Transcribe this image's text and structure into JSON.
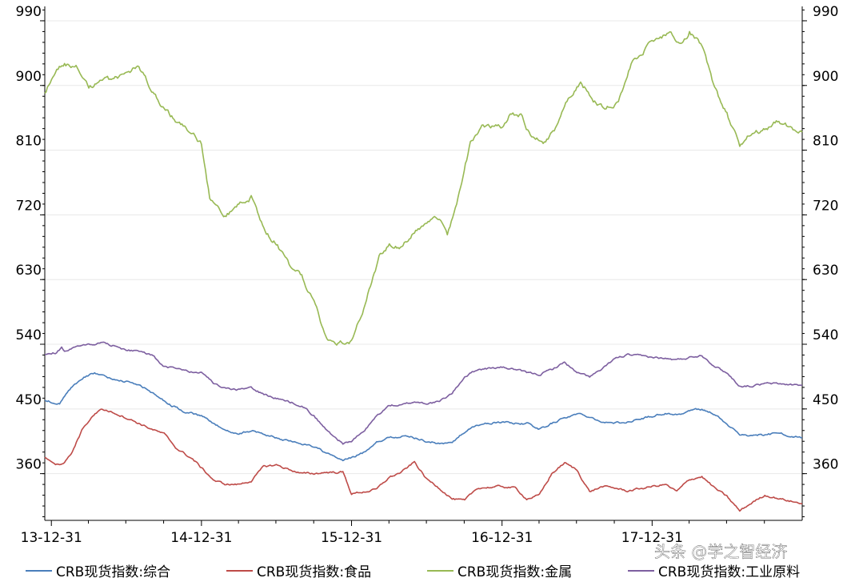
{
  "chart_data": {
    "type": "line",
    "title": "",
    "xlabel": "",
    "ylabel": "",
    "ylim": [
      295,
      1010
    ],
    "yticks": [
      360,
      450,
      540,
      630,
      720,
      810,
      900,
      990
    ],
    "yticks_right": [
      360,
      450,
      540,
      630,
      720,
      810,
      900,
      990
    ],
    "xlim": [
      "2013-12-15",
      "2018-12-31"
    ],
    "xtick_labels": [
      "13-12-31",
      "14-12-31",
      "15-12-31",
      "16-12-31",
      "17-12-31"
    ],
    "xtick_dates": [
      "2013-12-31",
      "2014-12-31",
      "2015-12-31",
      "2016-12-31",
      "2017-12-31"
    ],
    "grid": "horizontal",
    "legend_position": "bottom",
    "series": [
      {
        "name": "CRB现货指数:综合",
        "color": "#4a7ebb",
        "points": [
          [
            "2013-12-15",
            462
          ],
          [
            "2014-01-20",
            458
          ],
          [
            "2014-02-20",
            480
          ],
          [
            "2014-03-20",
            495
          ],
          [
            "2014-04-15",
            500
          ],
          [
            "2014-05-20",
            493
          ],
          [
            "2014-06-20",
            490
          ],
          [
            "2014-07-20",
            485
          ],
          [
            "2014-08-20",
            478
          ],
          [
            "2014-09-20",
            465
          ],
          [
            "2014-10-20",
            455
          ],
          [
            "2014-11-20",
            446
          ],
          [
            "2014-12-31",
            440
          ],
          [
            "2015-02-01",
            428
          ],
          [
            "2015-03-01",
            420
          ],
          [
            "2015-04-01",
            416
          ],
          [
            "2015-05-01",
            420
          ],
          [
            "2015-06-01",
            415
          ],
          [
            "2015-07-01",
            410
          ],
          [
            "2015-08-01",
            405
          ],
          [
            "2015-09-01",
            402
          ],
          [
            "2015-10-01",
            398
          ],
          [
            "2015-11-01",
            388
          ],
          [
            "2015-12-10",
            378
          ],
          [
            "2015-12-31",
            382
          ],
          [
            "2016-02-01",
            390
          ],
          [
            "2016-03-01",
            405
          ],
          [
            "2016-04-01",
            410
          ],
          [
            "2016-05-01",
            412
          ],
          [
            "2016-06-01",
            410
          ],
          [
            "2016-07-01",
            405
          ],
          [
            "2016-08-01",
            402
          ],
          [
            "2016-09-01",
            403
          ],
          [
            "2016-10-01",
            418
          ],
          [
            "2016-11-01",
            428
          ],
          [
            "2016-12-31",
            432
          ],
          [
            "2017-02-01",
            430
          ],
          [
            "2017-03-01",
            430
          ],
          [
            "2017-04-01",
            422
          ],
          [
            "2017-05-01",
            430
          ],
          [
            "2017-06-01",
            438
          ],
          [
            "2017-07-01",
            443
          ],
          [
            "2017-08-01",
            440
          ],
          [
            "2017-09-01",
            432
          ],
          [
            "2017-10-01",
            430
          ],
          [
            "2017-11-01",
            432
          ],
          [
            "2017-12-31",
            440
          ],
          [
            "2018-02-01",
            444
          ],
          [
            "2018-03-01",
            442
          ],
          [
            "2018-04-01",
            447
          ],
          [
            "2018-05-01",
            450
          ],
          [
            "2018-06-01",
            443
          ],
          [
            "2018-07-01",
            428
          ],
          [
            "2018-08-01",
            415
          ],
          [
            "2018-09-01",
            413
          ],
          [
            "2018-10-01",
            414
          ],
          [
            "2018-11-01",
            416
          ],
          [
            "2018-12-31",
            410
          ]
        ]
      },
      {
        "name": "CRB现货指数:食品",
        "color": "#be4b48",
        "points": [
          [
            "2013-12-15",
            382
          ],
          [
            "2014-01-10",
            370
          ],
          [
            "2014-02-01",
            375
          ],
          [
            "2014-02-20",
            390
          ],
          [
            "2014-03-15",
            420
          ],
          [
            "2014-04-10",
            440
          ],
          [
            "2014-05-01",
            450
          ],
          [
            "2014-06-01",
            445
          ],
          [
            "2014-07-01",
            438
          ],
          [
            "2014-08-01",
            430
          ],
          [
            "2014-09-01",
            422
          ],
          [
            "2014-10-01",
            415
          ],
          [
            "2014-11-01",
            395
          ],
          [
            "2014-12-10",
            380
          ],
          [
            "2014-12-31",
            368
          ],
          [
            "2015-02-01",
            350
          ],
          [
            "2015-03-01",
            345
          ],
          [
            "2015-04-01",
            345
          ],
          [
            "2015-05-01",
            350
          ],
          [
            "2015-06-01",
            370
          ],
          [
            "2015-07-01",
            372
          ],
          [
            "2015-08-01",
            366
          ],
          [
            "2015-09-01",
            360
          ],
          [
            "2015-10-01",
            360
          ],
          [
            "2015-11-01",
            362
          ],
          [
            "2015-12-10",
            362
          ],
          [
            "2015-12-31",
            332
          ],
          [
            "2016-02-01",
            335
          ],
          [
            "2016-03-01",
            338
          ],
          [
            "2016-04-01",
            355
          ],
          [
            "2016-05-01",
            362
          ],
          [
            "2016-06-01",
            376
          ],
          [
            "2016-07-01",
            352
          ],
          [
            "2016-08-01",
            340
          ],
          [
            "2016-09-01",
            325
          ],
          [
            "2016-10-01",
            322
          ],
          [
            "2016-11-01",
            340
          ],
          [
            "2016-12-31",
            342
          ],
          [
            "2017-02-01",
            340
          ],
          [
            "2017-03-01",
            325
          ],
          [
            "2017-04-01",
            330
          ],
          [
            "2017-05-01",
            360
          ],
          [
            "2017-06-01",
            375
          ],
          [
            "2017-07-01",
            365
          ],
          [
            "2017-08-01",
            335
          ],
          [
            "2017-09-01",
            342
          ],
          [
            "2017-10-01",
            340
          ],
          [
            "2017-11-01",
            336
          ],
          [
            "2017-12-31",
            342
          ],
          [
            "2018-02-01",
            345
          ],
          [
            "2018-03-01",
            335
          ],
          [
            "2018-04-01",
            352
          ],
          [
            "2018-05-01",
            356
          ],
          [
            "2018-06-01",
            340
          ],
          [
            "2018-07-01",
            328
          ],
          [
            "2018-08-01",
            308
          ],
          [
            "2018-09-01",
            320
          ],
          [
            "2018-10-01",
            330
          ],
          [
            "2018-11-01",
            326
          ],
          [
            "2018-12-31",
            318
          ]
        ]
      },
      {
        "name": "CRB现货指数:金属",
        "color": "#98b954",
        "points": [
          [
            "2013-12-15",
            890
          ],
          [
            "2014-01-10",
            920
          ],
          [
            "2014-02-01",
            930
          ],
          [
            "2014-03-01",
            925
          ],
          [
            "2014-04-01",
            895
          ],
          [
            "2014-05-01",
            910
          ],
          [
            "2014-06-01",
            905
          ],
          [
            "2014-07-01",
            920
          ],
          [
            "2014-08-01",
            925
          ],
          [
            "2014-09-01",
            895
          ],
          [
            "2014-10-01",
            870
          ],
          [
            "2014-11-01",
            850
          ],
          [
            "2014-12-31",
            820
          ],
          [
            "2015-01-20",
            745
          ],
          [
            "2015-03-01",
            720
          ],
          [
            "2015-04-01",
            735
          ],
          [
            "2015-05-01",
            745
          ],
          [
            "2015-06-01",
            700
          ],
          [
            "2015-07-01",
            680
          ],
          [
            "2015-08-01",
            650
          ],
          [
            "2015-09-01",
            635
          ],
          [
            "2015-10-01",
            600
          ],
          [
            "2015-11-01",
            548
          ],
          [
            "2015-12-10",
            542
          ],
          [
            "2015-12-31",
            545
          ],
          [
            "2016-01-20",
            575
          ],
          [
            "2016-02-15",
            620
          ],
          [
            "2016-03-10",
            665
          ],
          [
            "2016-04-01",
            680
          ],
          [
            "2016-05-01",
            675
          ],
          [
            "2016-06-01",
            695
          ],
          [
            "2016-07-01",
            710
          ],
          [
            "2016-08-01",
            715
          ],
          [
            "2016-08-20",
            690
          ],
          [
            "2016-09-15",
            745
          ],
          [
            "2016-10-15",
            820
          ],
          [
            "2016-11-15",
            845
          ],
          [
            "2016-12-31",
            840
          ],
          [
            "2017-01-20",
            860
          ],
          [
            "2017-02-15",
            860
          ],
          [
            "2017-03-10",
            830
          ],
          [
            "2017-04-10",
            822
          ],
          [
            "2017-05-10",
            840
          ],
          [
            "2017-06-10",
            880
          ],
          [
            "2017-07-10",
            905
          ],
          [
            "2017-08-10",
            880
          ],
          [
            "2017-09-10",
            868
          ],
          [
            "2017-10-10",
            880
          ],
          [
            "2017-11-10",
            930
          ],
          [
            "2017-12-31",
            960
          ],
          [
            "2018-01-20",
            965
          ],
          [
            "2018-02-15",
            975
          ],
          [
            "2018-03-10",
            955
          ],
          [
            "2018-04-01",
            975
          ],
          [
            "2018-05-01",
            955
          ],
          [
            "2018-06-01",
            895
          ],
          [
            "2018-07-01",
            860
          ],
          [
            "2018-08-01",
            815
          ],
          [
            "2018-09-01",
            835
          ],
          [
            "2018-10-01",
            840
          ],
          [
            "2018-11-01",
            850
          ],
          [
            "2018-12-31",
            835
          ]
        ]
      },
      {
        "name": "CRB现货指数:工业原料",
        "color": "#7d5fa0",
        "points": [
          [
            "2013-12-15",
            525
          ],
          [
            "2014-01-10",
            528
          ],
          [
            "2014-01-25",
            535
          ],
          [
            "2014-02-01",
            530
          ],
          [
            "2014-03-01",
            535
          ],
          [
            "2014-04-01",
            540
          ],
          [
            "2014-05-01",
            542
          ],
          [
            "2014-06-01",
            538
          ],
          [
            "2014-07-01",
            532
          ],
          [
            "2014-08-01",
            530
          ],
          [
            "2014-09-01",
            525
          ],
          [
            "2014-10-01",
            510
          ],
          [
            "2014-11-01",
            505
          ],
          [
            "2014-12-31",
            500
          ],
          [
            "2015-02-01",
            484
          ],
          [
            "2015-03-01",
            478
          ],
          [
            "2015-04-01",
            476
          ],
          [
            "2015-05-01",
            480
          ],
          [
            "2015-06-01",
            470
          ],
          [
            "2015-07-01",
            465
          ],
          [
            "2015-08-01",
            460
          ],
          [
            "2015-09-01",
            455
          ],
          [
            "2015-10-01",
            440
          ],
          [
            "2015-11-01",
            420
          ],
          [
            "2015-12-10",
            402
          ],
          [
            "2015-12-31",
            405
          ],
          [
            "2016-02-01",
            420
          ],
          [
            "2016-03-01",
            440
          ],
          [
            "2016-04-01",
            455
          ],
          [
            "2016-05-01",
            455
          ],
          [
            "2016-06-01",
            460
          ],
          [
            "2016-07-01",
            458
          ],
          [
            "2016-08-01",
            460
          ],
          [
            "2016-09-01",
            472
          ],
          [
            "2016-10-01",
            495
          ],
          [
            "2016-11-01",
            505
          ],
          [
            "2016-12-31",
            508
          ],
          [
            "2017-02-01",
            505
          ],
          [
            "2017-03-01",
            500
          ],
          [
            "2017-04-01",
            498
          ],
          [
            "2017-05-01",
            505
          ],
          [
            "2017-06-01",
            515
          ],
          [
            "2017-07-01",
            500
          ],
          [
            "2017-08-01",
            495
          ],
          [
            "2017-09-01",
            505
          ],
          [
            "2017-10-01",
            520
          ],
          [
            "2017-11-01",
            525
          ],
          [
            "2017-12-31",
            522
          ],
          [
            "2018-02-01",
            520
          ],
          [
            "2018-03-01",
            518
          ],
          [
            "2018-04-01",
            522
          ],
          [
            "2018-05-01",
            525
          ],
          [
            "2018-06-01",
            510
          ],
          [
            "2018-07-01",
            500
          ],
          [
            "2018-08-01",
            482
          ],
          [
            "2018-09-01",
            482
          ],
          [
            "2018-10-01",
            485
          ],
          [
            "2018-11-01",
            485
          ],
          [
            "2018-12-31",
            483
          ]
        ]
      }
    ]
  },
  "watermark": "头条 @学之智经济"
}
